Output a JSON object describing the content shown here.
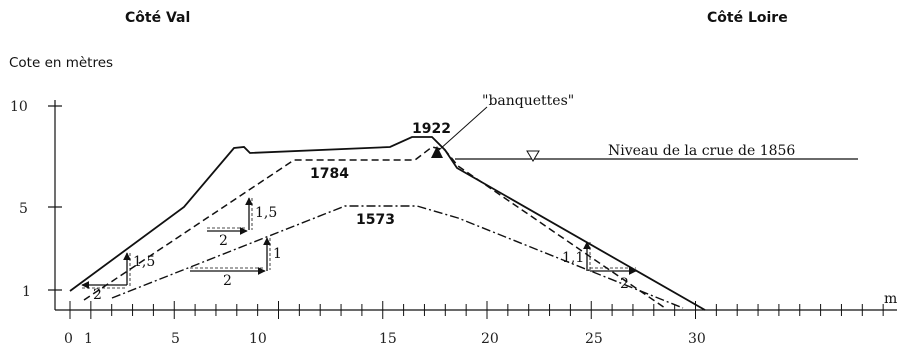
{
  "header": {
    "side_left": "Côté Val",
    "side_right": "Côté Loire"
  },
  "axis": {
    "y_title": "Cote en mètres",
    "x_unit": "m",
    "y_ticks": [
      {
        "label": "10",
        "value": 10
      },
      {
        "label": "5",
        "value": 5
      },
      {
        "label": "1",
        "value": 1
      }
    ],
    "x_ticks": [
      {
        "label": "0",
        "value": 0
      },
      {
        "label": "1",
        "value": 1
      },
      {
        "label": "5",
        "value": 5
      },
      {
        "label": "10",
        "value": 10
      },
      {
        "label": "15",
        "value": 15
      },
      {
        "label": "20",
        "value": 20
      },
      {
        "label": "25",
        "value": 25
      },
      {
        "label": "30",
        "value": 30
      }
    ]
  },
  "profiles": [
    {
      "label": "1922",
      "style": "solid"
    },
    {
      "label": "1784",
      "style": "dashed"
    },
    {
      "label": "1573",
      "style": "dash-dot"
    }
  ],
  "annotations": {
    "banquettes": "\"banquettes\"",
    "flood_level": "Niveau de la crue de 1856"
  },
  "slope_marks": {
    "v_1_5_left": "1,5",
    "h_2_left": "2",
    "v_1_5_mid": "1,5",
    "h_2_mid": "2",
    "v_1": "1",
    "h_2_low": "2",
    "v_1_1": "1,1",
    "h_2_right": "2"
  },
  "colors": {
    "ink": "#111111",
    "background": "#ffffff"
  }
}
